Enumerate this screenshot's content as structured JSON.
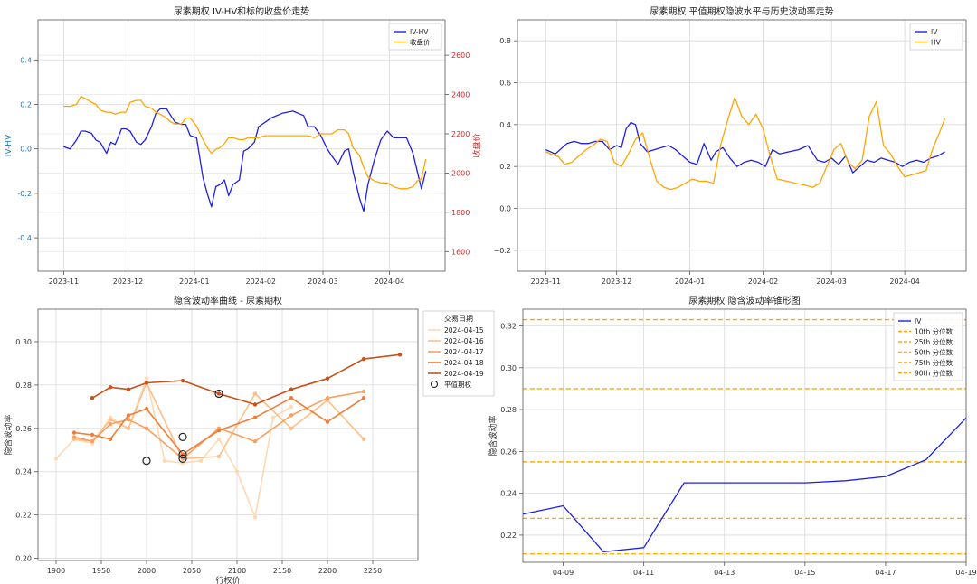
{
  "chart_data": [
    {
      "id": "ivhv",
      "type": "line",
      "title": "尿素期权 IV-HV和标的收盘价走势",
      "ylabel": "IV-HV",
      "y2label": "收盘价",
      "ylim": [
        -0.55,
        0.58
      ],
      "y2lim": [
        1500,
        2780
      ],
      "yticks": [
        -0.4,
        -0.2,
        0.0,
        0.2,
        0.4
      ],
      "yticks_labels": [
        "-0.4",
        "-0.2",
        "0.0",
        "0.2",
        "0.4"
      ],
      "y2ticks": [
        1600,
        1800,
        2000,
        2200,
        2400,
        2600
      ],
      "y2ticks_labels": [
        "1600",
        "1800",
        "2000",
        "2200",
        "2400",
        "2600"
      ],
      "xlim": [
        "2023-10-20",
        "2024-04-27"
      ],
      "xticks": [
        "2023-11-01",
        "2023-12-01",
        "2024-01-01",
        "2024-02-01",
        "2024-03-01",
        "2024-04-01"
      ],
      "xticks_labels": [
        "2023-11",
        "2023-12",
        "2024-01",
        "2024-02",
        "2024-03",
        "2024-04"
      ],
      "grid": true,
      "legend_position": "top-right",
      "series": [
        {
          "name": "IV-HV",
          "axis": "left",
          "color": "#2020e0",
          "x": [
            "2023-11-01",
            "2023-11-04",
            "2023-11-07",
            "2023-11-09",
            "2023-11-11",
            "2023-11-14",
            "2023-11-16",
            "2023-11-18",
            "2023-11-21",
            "2023-11-23",
            "2023-11-25",
            "2023-11-28",
            "2023-11-30",
            "2023-12-02",
            "2023-12-05",
            "2023-12-07",
            "2023-12-09",
            "2023-12-12",
            "2023-12-14",
            "2023-12-16",
            "2023-12-19",
            "2023-12-21",
            "2023-12-23",
            "2023-12-26",
            "2023-12-28",
            "2023-12-30",
            "2024-01-02",
            "2024-01-05",
            "2024-01-07",
            "2024-01-09",
            "2024-01-11",
            "2024-01-13",
            "2024-01-15",
            "2024-01-17",
            "2024-01-19",
            "2024-01-22",
            "2024-01-24",
            "2024-01-26",
            "2024-01-29",
            "2024-01-31",
            "2024-02-03",
            "2024-02-06",
            "2024-02-11",
            "2024-02-16",
            "2024-02-21",
            "2024-02-23",
            "2024-02-26",
            "2024-02-29",
            "2024-03-03",
            "2024-03-05",
            "2024-03-08",
            "2024-03-11",
            "2024-03-13",
            "2024-03-15",
            "2024-03-18",
            "2024-03-20",
            "2024-03-22",
            "2024-03-25",
            "2024-03-28",
            "2024-03-31",
            "2024-04-03",
            "2024-04-06",
            "2024-04-09",
            "2024-04-12",
            "2024-04-14",
            "2024-04-16",
            "2024-04-18"
          ],
          "values": [
            0.01,
            0.0,
            0.04,
            0.08,
            0.08,
            0.07,
            0.04,
            0.03,
            -0.02,
            0.03,
            0.02,
            0.09,
            0.09,
            0.08,
            0.03,
            0.02,
            0.04,
            0.1,
            0.16,
            0.18,
            0.18,
            0.15,
            0.12,
            0.11,
            0.11,
            0.06,
            0.05,
            -0.13,
            -0.2,
            -0.26,
            -0.17,
            -0.16,
            -0.14,
            -0.21,
            -0.16,
            -0.14,
            -0.01,
            0.0,
            0.03,
            0.1,
            0.12,
            0.14,
            0.16,
            0.17,
            0.15,
            0.1,
            0.1,
            0.06,
            0.0,
            -0.03,
            -0.07,
            -0.01,
            0.0,
            -0.1,
            -0.22,
            -0.28,
            -0.16,
            -0.05,
            0.04,
            0.08,
            0.05,
            0.05,
            0.05,
            -0.02,
            -0.1,
            -0.18,
            -0.1
          ]
        },
        {
          "name": "收盘价",
          "axis": "right",
          "color": "#ffa500",
          "x": [
            "2023-11-01",
            "2023-11-04",
            "2023-11-07",
            "2023-11-09",
            "2023-11-11",
            "2023-11-14",
            "2023-11-16",
            "2023-11-18",
            "2023-11-21",
            "2023-11-23",
            "2023-11-25",
            "2023-11-28",
            "2023-11-30",
            "2023-12-02",
            "2023-12-05",
            "2023-12-07",
            "2023-12-09",
            "2023-12-12",
            "2023-12-14",
            "2023-12-16",
            "2023-12-19",
            "2023-12-21",
            "2023-12-23",
            "2023-12-26",
            "2023-12-28",
            "2023-12-30",
            "2024-01-02",
            "2024-01-05",
            "2024-01-07",
            "2024-01-09",
            "2024-01-11",
            "2024-01-13",
            "2024-01-15",
            "2024-01-17",
            "2024-01-19",
            "2024-01-22",
            "2024-01-24",
            "2024-01-26",
            "2024-01-29",
            "2024-01-31",
            "2024-02-03",
            "2024-02-06",
            "2024-02-11",
            "2024-02-16",
            "2024-02-21",
            "2024-02-23",
            "2024-02-26",
            "2024-02-29",
            "2024-03-03",
            "2024-03-05",
            "2024-03-08",
            "2024-03-11",
            "2024-03-13",
            "2024-03-15",
            "2024-03-18",
            "2024-03-20",
            "2024-03-22",
            "2024-03-25",
            "2024-03-28",
            "2024-03-31",
            "2024-04-03",
            "2024-04-06",
            "2024-04-09",
            "2024-04-12",
            "2024-04-14",
            "2024-04-16",
            "2024-04-18"
          ],
          "values": [
            2340,
            2340,
            2350,
            2390,
            2380,
            2360,
            2350,
            2320,
            2310,
            2310,
            2300,
            2310,
            2310,
            2360,
            2370,
            2370,
            2340,
            2330,
            2310,
            2300,
            2280,
            2260,
            2250,
            2250,
            2280,
            2280,
            2240,
            2170,
            2130,
            2100,
            2120,
            2130,
            2150,
            2180,
            2180,
            2170,
            2170,
            2180,
            2180,
            2180,
            2190,
            2190,
            2190,
            2190,
            2190,
            2190,
            2180,
            2200,
            2200,
            2200,
            2220,
            2220,
            2200,
            2130,
            2090,
            2030,
            1980,
            1960,
            1950,
            1950,
            1930,
            1920,
            1920,
            1930,
            1960,
            1970,
            2070
          ]
        }
      ]
    },
    {
      "id": "atm",
      "type": "line",
      "title": "尿素期权 平值期权隐波水平与历史波动率走势",
      "ylim": [
        -0.3,
        0.9
      ],
      "yticks": [
        -0.2,
        0.0,
        0.2,
        0.4,
        0.6,
        0.8
      ],
      "yticks_labels": [
        "−0.2",
        "0.0",
        "0.2",
        "0.4",
        "0.6",
        "0.8"
      ],
      "xlim": [
        "2023-10-20",
        "2024-04-27"
      ],
      "xticks": [
        "2023-11-01",
        "2023-12-01",
        "2024-01-01",
        "2024-02-01",
        "2024-03-01",
        "2024-04-01"
      ],
      "xticks_labels": [
        "2023-11",
        "2023-12",
        "2024-01",
        "2024-02",
        "2024-03",
        "2024-04"
      ],
      "grid": true,
      "legend_position": "top-right",
      "series": [
        {
          "name": "IV",
          "color": "#2020e0",
          "x": [
            "2023-11-01",
            "2023-11-03",
            "2023-11-05",
            "2023-11-08",
            "2023-11-10",
            "2023-11-13",
            "2023-11-16",
            "2023-11-19",
            "2023-11-22",
            "2023-11-25",
            "2023-11-28",
            "2023-12-01",
            "2023-12-03",
            "2023-12-05",
            "2023-12-07",
            "2023-12-09",
            "2023-12-11",
            "2023-12-14",
            "2023-12-17",
            "2023-12-20",
            "2023-12-23",
            "2023-12-26",
            "2023-12-29",
            "2024-01-01",
            "2024-01-04",
            "2024-01-07",
            "2024-01-10",
            "2024-01-12",
            "2024-01-15",
            "2024-01-18",
            "2024-01-21",
            "2024-01-24",
            "2024-01-27",
            "2024-01-30",
            "2024-02-02",
            "2024-02-05",
            "2024-02-08",
            "2024-02-12",
            "2024-02-16",
            "2024-02-20",
            "2024-02-24",
            "2024-02-27",
            "2024-03-01",
            "2024-03-04",
            "2024-03-07",
            "2024-03-10",
            "2024-03-13",
            "2024-03-16",
            "2024-03-19",
            "2024-03-22",
            "2024-03-25",
            "2024-03-28",
            "2024-03-31",
            "2024-04-03",
            "2024-04-06",
            "2024-04-09",
            "2024-04-12",
            "2024-04-15",
            "2024-04-18"
          ],
          "values": [
            0.28,
            0.27,
            0.26,
            0.29,
            0.31,
            0.32,
            0.31,
            0.31,
            0.32,
            0.32,
            0.28,
            0.3,
            0.29,
            0.38,
            0.41,
            0.4,
            0.31,
            0.27,
            0.28,
            0.29,
            0.3,
            0.28,
            0.25,
            0.22,
            0.21,
            0.31,
            0.23,
            0.27,
            0.29,
            0.24,
            0.2,
            0.22,
            0.23,
            0.22,
            0.2,
            0.28,
            0.26,
            0.27,
            0.28,
            0.3,
            0.23,
            0.22,
            0.24,
            0.21,
            0.25,
            0.17,
            0.2,
            0.23,
            0.22,
            0.24,
            0.23,
            0.22,
            0.2,
            0.22,
            0.23,
            0.22,
            0.24,
            0.25,
            0.27
          ]
        },
        {
          "name": "HV",
          "color": "#ffa500",
          "x": [
            "2023-11-01",
            "2023-11-03",
            "2023-11-06",
            "2023-11-09",
            "2023-11-12",
            "2023-11-15",
            "2023-11-18",
            "2023-11-21",
            "2023-11-24",
            "2023-11-27",
            "2023-11-30",
            "2023-12-03",
            "2023-12-06",
            "2023-12-09",
            "2023-12-12",
            "2023-12-15",
            "2023-12-18",
            "2023-12-21",
            "2023-12-24",
            "2023-12-27",
            "2023-12-30",
            "2024-01-02",
            "2024-01-05",
            "2024-01-08",
            "2024-01-11",
            "2024-01-14",
            "2024-01-17",
            "2024-01-20",
            "2024-01-23",
            "2024-01-26",
            "2024-01-29",
            "2024-02-01",
            "2024-02-04",
            "2024-02-07",
            "2024-02-11",
            "2024-02-15",
            "2024-02-19",
            "2024-02-22",
            "2024-02-25",
            "2024-02-28",
            "2024-03-02",
            "2024-03-05",
            "2024-03-08",
            "2024-03-11",
            "2024-03-14",
            "2024-03-17",
            "2024-03-20",
            "2024-03-23",
            "2024-03-26",
            "2024-03-29",
            "2024-04-01",
            "2024-04-04",
            "2024-04-07",
            "2024-04-10",
            "2024-04-13",
            "2024-04-16",
            "2024-04-18"
          ],
          "values": [
            0.27,
            0.26,
            0.25,
            0.21,
            0.22,
            0.25,
            0.28,
            0.3,
            0.33,
            0.32,
            0.22,
            0.2,
            0.26,
            0.33,
            0.36,
            0.24,
            0.13,
            0.1,
            0.09,
            0.1,
            0.12,
            0.14,
            0.13,
            0.13,
            0.12,
            0.3,
            0.42,
            0.53,
            0.44,
            0.4,
            0.45,
            0.38,
            0.25,
            0.14,
            0.13,
            0.12,
            0.11,
            0.1,
            0.12,
            0.2,
            0.28,
            0.31,
            0.22,
            0.19,
            0.23,
            0.44,
            0.51,
            0.3,
            0.26,
            0.2,
            0.15,
            0.16,
            0.17,
            0.18,
            0.29,
            0.37,
            0.43
          ]
        }
      ]
    },
    {
      "id": "smile",
      "type": "line",
      "title": "隐含波动率曲线 - 尿素期权",
      "xlabel": "行权价",
      "ylabel": "隐含波动率",
      "xlim": [
        1880,
        2300
      ],
      "ylim": [
        0.199,
        0.315
      ],
      "xticks": [
        1900,
        1950,
        2000,
        2050,
        2100,
        2150,
        2200,
        2250
      ],
      "xticks_labels": [
        "1900",
        "1950",
        "2000",
        "2050",
        "2100",
        "2150",
        "2200",
        "2250"
      ],
      "yticks": [
        0.2,
        0.22,
        0.24,
        0.26,
        0.28,
        0.3
      ],
      "yticks_labels": [
        "0.20",
        "0.22",
        "0.24",
        "0.26",
        "0.28",
        "0.30"
      ],
      "grid": true,
      "legend_title": "交易日期",
      "legend_position": "outside-right",
      "series": [
        {
          "name": "2024-04-15",
          "color": "#fdd9b5",
          "x": [
            1900,
            1920,
            1940,
            1960,
            1980,
            2000,
            2020,
            2040,
            2060,
            2080,
            2100,
            2120,
            2140,
            2160
          ],
          "values": [
            0.246,
            0.255,
            0.253,
            0.265,
            0.26,
            0.283,
            0.245,
            0.244,
            0.245,
            0.255,
            0.24,
            0.219,
            0.265,
            0.27
          ]
        },
        {
          "name": "2024-04-16",
          "color": "#fdbf86",
          "x": [
            1920,
            1940,
            1960,
            1980,
            2000,
            2040,
            2080,
            2120,
            2160,
            2200,
            2240
          ],
          "values": [
            0.255,
            0.254,
            0.264,
            0.26,
            0.281,
            0.246,
            0.247,
            0.276,
            0.26,
            0.273,
            0.255
          ]
        },
        {
          "name": "2024-04-17",
          "color": "#f9a060",
          "x": [
            1920,
            1940,
            1960,
            1980,
            2000,
            2040,
            2080,
            2120,
            2160,
            2200,
            2240
          ],
          "values": [
            0.256,
            0.254,
            0.262,
            0.264,
            0.26,
            0.246,
            0.26,
            0.254,
            0.266,
            0.274,
            0.277
          ]
        },
        {
          "name": "2024-04-18",
          "color": "#ee7f3a",
          "x": [
            1920,
            1940,
            1960,
            1980,
            2000,
            2040,
            2080,
            2120,
            2160,
            2200,
            2240
          ],
          "values": [
            0.258,
            0.257,
            0.255,
            0.266,
            0.269,
            0.248,
            0.259,
            0.265,
            0.274,
            0.263,
            0.274
          ]
        },
        {
          "name": "2024-04-19",
          "color": "#c5531b",
          "x": [
            1940,
            1960,
            1980,
            2000,
            2040,
            2080,
            2120,
            2160,
            2200,
            2240,
            2280
          ],
          "values": [
            0.274,
            0.279,
            0.278,
            0.281,
            0.282,
            0.276,
            0.271,
            0.278,
            0.283,
            0.292,
            0.294
          ]
        }
      ],
      "atm": {
        "name": "平值期权",
        "points": [
          {
            "x": 2000,
            "y": 0.245
          },
          {
            "x": 2040,
            "y": 0.248
          },
          {
            "x": 2040,
            "y": 0.246
          },
          {
            "x": 2040,
            "y": 0.256
          },
          {
            "x": 2080,
            "y": 0.276
          }
        ]
      }
    },
    {
      "id": "cone",
      "type": "line",
      "title": "尿素期权 隐含波动率锥形图",
      "ylabel": "隐含波动率",
      "xlim": [
        "2024-04-08",
        "2024-04-19"
      ],
      "ylim": [
        0.207,
        0.328
      ],
      "xticks": [
        "2024-04-09",
        "2024-04-11",
        "2024-04-13",
        "2024-04-15",
        "2024-04-17",
        "2024-04-19"
      ],
      "xticks_labels": [
        "04-09",
        "04-11",
        "04-13",
        "04-15",
        "04-17",
        "04-19"
      ],
      "yticks": [
        0.22,
        0.24,
        0.26,
        0.28,
        0.3,
        0.32
      ],
      "yticks_labels": [
        "0.22",
        "0.24",
        "0.26",
        "0.28",
        "0.30",
        "0.32"
      ],
      "grid": true,
      "legend_position": "top-right",
      "series": [
        {
          "name": "IV",
          "color": "#2020e0",
          "x": [
            "2024-04-08",
            "2024-04-09",
            "2024-04-10",
            "2024-04-11",
            "2024-04-12",
            "2024-04-15",
            "2024-04-16",
            "2024-04-17",
            "2024-04-18",
            "2024-04-19"
          ],
          "values": [
            0.23,
            0.234,
            0.212,
            0.214,
            0.245,
            0.245,
            0.246,
            0.248,
            0.256,
            0.276
          ]
        }
      ],
      "percentiles": [
        {
          "name": "10th 分位数",
          "value": 0.211
        },
        {
          "name": "25th 分位数",
          "value": 0.228
        },
        {
          "name": "50th 分位数",
          "value": 0.255
        },
        {
          "name": "75th 分位数",
          "value": 0.29
        },
        {
          "name": "90th 分位数",
          "value": 0.323
        }
      ],
      "percentile_color": "#ffa500"
    }
  ]
}
